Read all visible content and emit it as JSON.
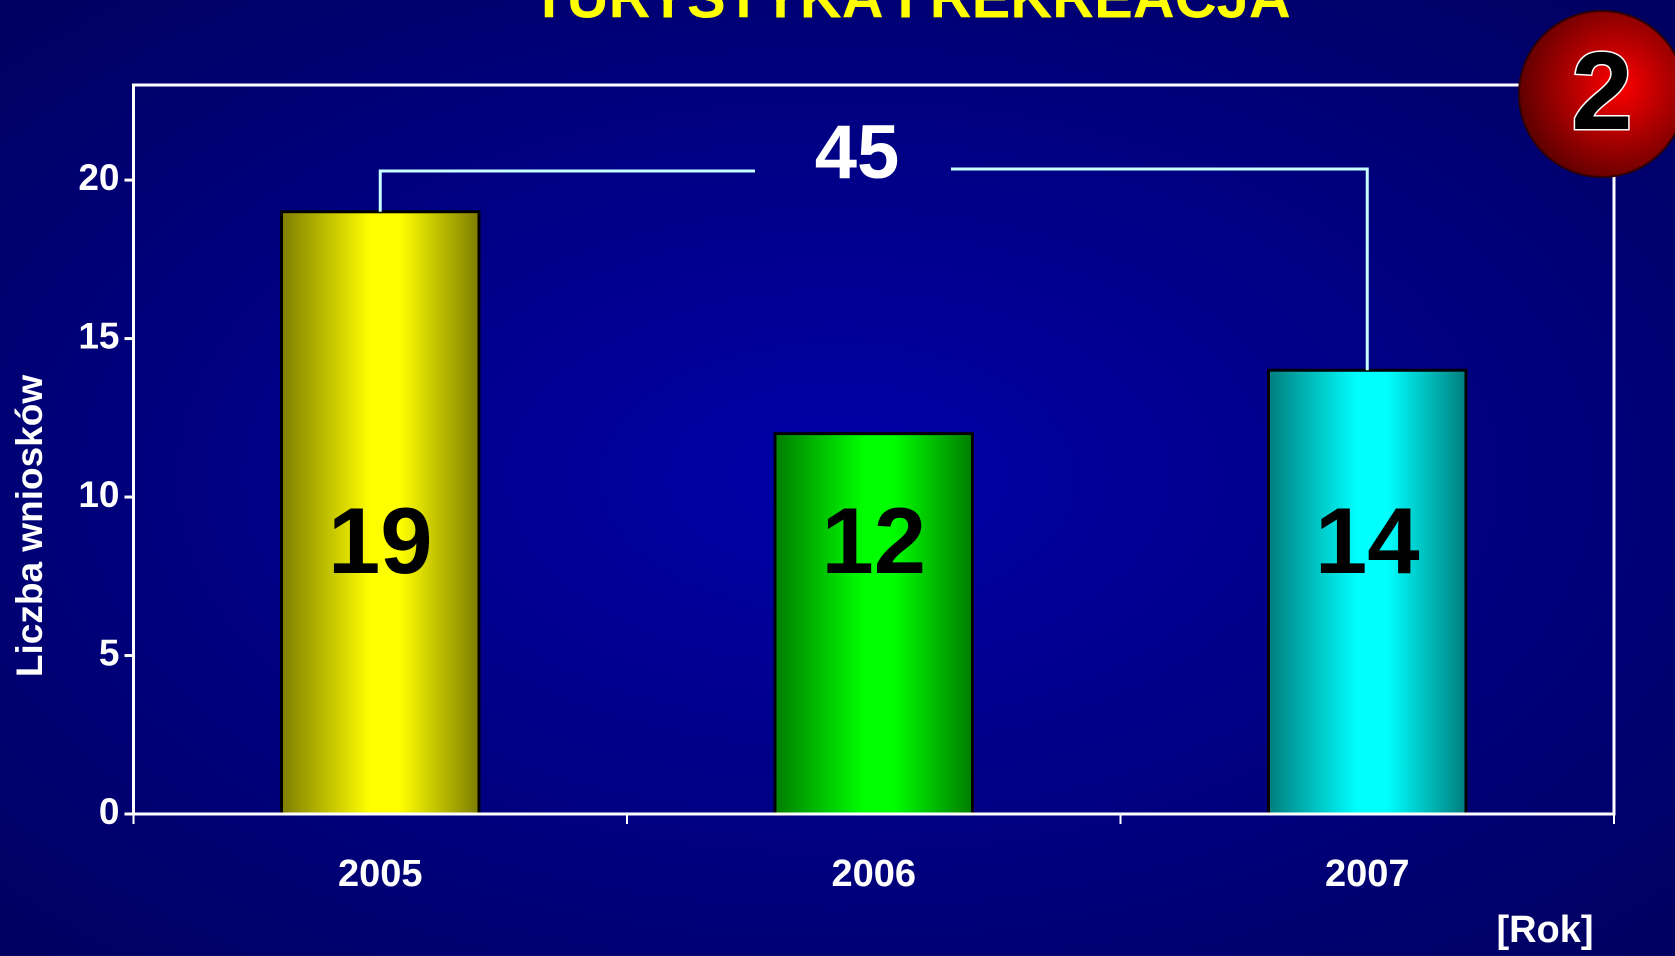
{
  "chart_data": {
    "type": "bar",
    "title": "TURYSTYKA I REKREACJA",
    "categories": [
      "2005",
      "2006",
      "2007"
    ],
    "values": [
      19,
      12,
      14
    ],
    "colors": [
      "#ffff00",
      "#00ff00",
      "#00ffff"
    ],
    "ylim": [
      0,
      23
    ],
    "yticks": [
      0,
      5,
      10,
      15,
      20
    ],
    "y_label": "Liczba wniosków",
    "x_label": "[Rok]",
    "total": 45,
    "badge": "2"
  }
}
